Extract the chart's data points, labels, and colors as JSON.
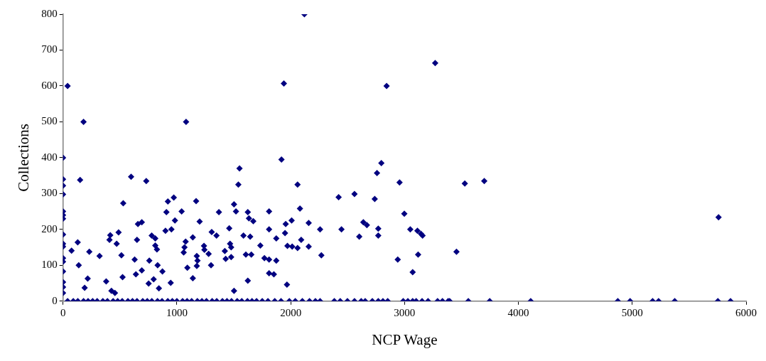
{
  "chart_data": {
    "type": "scatter",
    "xlabel": "NCP Wage",
    "ylabel": "Collections",
    "color": "#000080",
    "marker": "diamond",
    "grid": false,
    "legend": false,
    "xlim": [
      0,
      6000
    ],
    "xticks": [
      0,
      1000,
      2000,
      3000,
      4000,
      5000,
      6000
    ],
    "ylim": [
      0,
      800
    ],
    "yticks": [
      0,
      100,
      200,
      300,
      400,
      500,
      600,
      700,
      800
    ],
    "x": [
      0,
      0,
      0,
      0,
      0,
      0,
      0,
      0,
      0,
      0,
      0,
      0,
      0,
      0,
      0,
      0,
      40,
      180,
      150,
      75,
      129,
      138,
      231,
      190,
      217,
      321,
      379,
      425,
      456,
      415,
      408,
      471,
      488,
      513,
      523,
      529,
      598,
      629,
      640,
      650,
      658,
      692,
      692,
      731,
      752,
      758,
      779,
      796,
      810,
      810,
      825,
      831,
      842,
      873,
      900,
      908,
      921,
      946,
      952,
      973,
      983,
      1042,
      1060,
      1067,
      1077,
      1081,
      1092,
      1140,
      1140,
      1169,
      1175,
      1181,
      1175,
      1200,
      1238,
      1242,
      1279,
      1300,
      1306,
      1348,
      1369,
      1421,
      1429,
      1460,
      1467,
      1477,
      1477,
      1502,
      1502,
      1519,
      1540,
      1550,
      1585,
      1606,
      1623,
      1623,
      1633,
      1644,
      1654,
      1671,
      1733,
      1769,
      1810,
      1810,
      1810,
      1810,
      1852,
      1873,
      1873,
      1919,
      1940,
      1950,
      1956,
      1971,
      1967,
      2120,
      3269,
      2842,
      2060,
      2081,
      2008,
      2158,
      2092,
      2013,
      2060,
      2158,
      2258,
      2269,
      2421,
      2560,
      2446,
      2602,
      2638,
      2669,
      2738,
      2758,
      2796,
      2769,
      2769,
      2956,
      2998,
      2940,
      3050,
      3113,
      3144,
      3158,
      3119,
      3071,
      3456,
      3529,
      3700,
      5758,
      40,
      90,
      130,
      180,
      220,
      260,
      300,
      350,
      390,
      440,
      480,
      520,
      570,
      610,
      650,
      700,
      740,
      780,
      830,
      870,
      920,
      960,
      1000,
      1050,
      1090,
      1130,
      1180,
      1220,
      1260,
      1310,
      1350,
      1400,
      1440,
      1480,
      1530,
      1570,
      1620,
      1660,
      1700,
      1750,
      1800,
      1860,
      1915,
      1988,
      2040,
      2102,
      2165,
      2217,
      2258,
      2383,
      2435,
      2498,
      2560,
      2619,
      2654,
      2717,
      2769,
      2810,
      2852,
      2988,
      3029,
      3071,
      3102,
      3154,
      3206,
      3290,
      3333,
      3383,
      3396,
      3560,
      3748,
      4108,
      4873,
      4981,
      5179,
      5231,
      5373,
      5752,
      5863
    ],
    "values": [
      400,
      340,
      322,
      298,
      250,
      240,
      230,
      186,
      160,
      152,
      120,
      110,
      83,
      53,
      39,
      23,
      600,
      500,
      338,
      141,
      164,
      100,
      138,
      37,
      63,
      126,
      55,
      29,
      23,
      184,
      171,
      160,
      192,
      128,
      67,
      273,
      347,
      116,
      75,
      171,
      215,
      220,
      86,
      335,
      49,
      113,
      183,
      61,
      175,
      155,
      144,
      100,
      36,
      83,
      196,
      248,
      278,
      51,
      200,
      289,
      225,
      250,
      136,
      150,
      166,
      500,
      93,
      178,
      64,
      279,
      126,
      113,
      98,
      222,
      154,
      143,
      132,
      100,
      193,
      183,
      248,
      140,
      118,
      203,
      160,
      150,
      123,
      270,
      29,
      250,
      325,
      370,
      183,
      130,
      57,
      248,
      231,
      180,
      130,
      223,
      155,
      120,
      250,
      200,
      116,
      78,
      75,
      175,
      113,
      395,
      607,
      190,
      215,
      154,
      46,
      800,
      664,
      600,
      325,
      258,
      225,
      218,
      171,
      152,
      148,
      152,
      200,
      128,
      290,
      299,
      200,
      180,
      220,
      212,
      285,
      357,
      385,
      202,
      183,
      331,
      244,
      116,
      200,
      196,
      188,
      183,
      130,
      81,
      138,
      328,
      335,
      234,
      0,
      0,
      0,
      0,
      0,
      0,
      0,
      0,
      0,
      0,
      0,
      0,
      0,
      0,
      0,
      0,
      0,
      0,
      0,
      0,
      0,
      0,
      0,
      0,
      0,
      0,
      0,
      0,
      0,
      0,
      0,
      0,
      0,
      0,
      0,
      0,
      0,
      0,
      0,
      0,
      0,
      0,
      0,
      0,
      0,
      0,
      0,
      0,
      0,
      0,
      0,
      0,
      0,
      0,
      0,
      0,
      0,
      0,
      0,
      0,
      0,
      0,
      0,
      0,
      0,
      0,
      0,
      0,
      0,
      0,
      0,
      0,
      0,
      0,
      0,
      0,
      0,
      0,
      0
    ]
  }
}
